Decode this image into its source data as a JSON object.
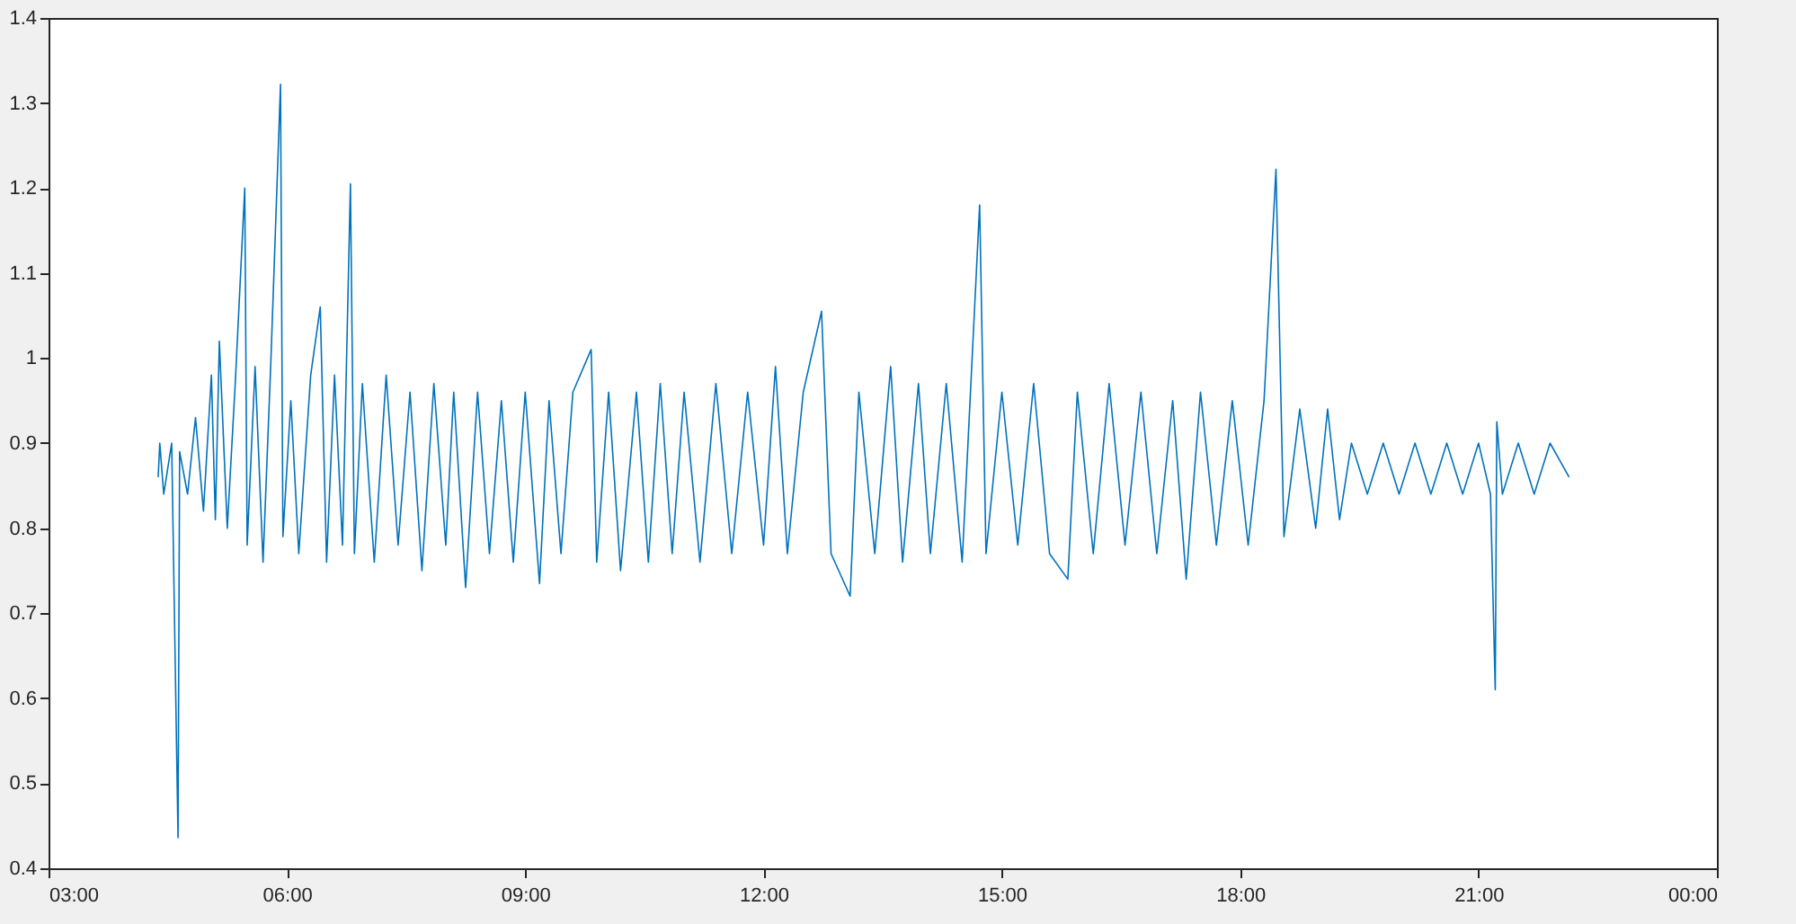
{
  "chart_data": {
    "type": "line",
    "color": "#0072bd",
    "line_style": "solid",
    "xlim": [
      3,
      24
    ],
    "ylim": [
      0.4,
      1.4
    ],
    "xticks": [
      {
        "value": 3,
        "label": "03:00"
      },
      {
        "value": 6,
        "label": "06:00"
      },
      {
        "value": 9,
        "label": "09:00"
      },
      {
        "value": 12,
        "label": "12:00"
      },
      {
        "value": 15,
        "label": "15:00"
      },
      {
        "value": 18,
        "label": "18:00"
      },
      {
        "value": 21,
        "label": "21:00"
      },
      {
        "value": 24,
        "label": "00:00"
      }
    ],
    "yticks": [
      0.4,
      0.5,
      0.6,
      0.7,
      0.8,
      0.9,
      1,
      1.1,
      1.2,
      1.3,
      1.4
    ],
    "x": [
      4.38,
      4.4,
      4.45,
      4.55,
      4.63,
      4.65,
      4.75,
      4.85,
      4.95,
      5.05,
      5.1,
      5.15,
      5.25,
      5.35,
      5.47,
      5.5,
      5.6,
      5.7,
      5.8,
      5.92,
      5.95,
      6.05,
      6.15,
      6.3,
      6.42,
      6.5,
      6.6,
      6.7,
      6.8,
      6.85,
      6.95,
      7.1,
      7.25,
      7.4,
      7.55,
      7.7,
      7.85,
      8.0,
      8.1,
      8.25,
      8.4,
      8.55,
      8.7,
      8.85,
      9.0,
      9.18,
      9.3,
      9.45,
      9.6,
      9.83,
      9.9,
      10.05,
      10.2,
      10.4,
      10.55,
      10.7,
      10.85,
      11.0,
      11.2,
      11.4,
      11.6,
      11.8,
      12.0,
      12.15,
      12.3,
      12.5,
      12.73,
      12.85,
      13.09,
      13.2,
      13.4,
      13.6,
      13.75,
      13.95,
      14.1,
      14.3,
      14.5,
      14.72,
      14.8,
      15.0,
      15.2,
      15.4,
      15.6,
      15.83,
      15.95,
      16.15,
      16.35,
      16.55,
      16.75,
      16.95,
      17.15,
      17.32,
      17.5,
      17.7,
      17.9,
      18.1,
      18.3,
      18.45,
      18.55,
      18.75,
      18.95,
      19.1,
      19.25,
      19.4,
      19.6,
      19.8,
      20.0,
      20.2,
      20.4,
      20.6,
      20.8,
      21.0,
      21.15,
      21.21,
      21.23,
      21.3,
      21.5,
      21.7,
      21.9,
      22.14
    ],
    "values": [
      0.86,
      0.9,
      0.84,
      0.9,
      0.436,
      0.89,
      0.84,
      0.93,
      0.82,
      0.98,
      0.81,
      1.02,
      0.8,
      0.97,
      1.2,
      0.78,
      0.99,
      0.76,
      1.0,
      1.322,
      0.79,
      0.95,
      0.77,
      0.98,
      1.06,
      0.76,
      0.98,
      0.78,
      1.205,
      0.77,
      0.97,
      0.76,
      0.98,
      0.78,
      0.96,
      0.75,
      0.97,
      0.78,
      0.96,
      0.73,
      0.96,
      0.77,
      0.95,
      0.76,
      0.96,
      0.735,
      0.95,
      0.77,
      0.96,
      1.01,
      0.76,
      0.96,
      0.75,
      0.96,
      0.76,
      0.97,
      0.77,
      0.96,
      0.76,
      0.97,
      0.77,
      0.96,
      0.78,
      0.99,
      0.77,
      0.96,
      1.055,
      0.77,
      0.72,
      0.96,
      0.77,
      0.99,
      0.76,
      0.97,
      0.77,
      0.97,
      0.76,
      1.18,
      0.77,
      0.96,
      0.78,
      0.97,
      0.77,
      0.74,
      0.96,
      0.77,
      0.97,
      0.78,
      0.96,
      0.77,
      0.95,
      0.74,
      0.96,
      0.78,
      0.95,
      0.78,
      0.95,
      1.222,
      0.79,
      0.94,
      0.8,
      0.94,
      0.81,
      0.9,
      0.84,
      0.9,
      0.84,
      0.9,
      0.84,
      0.9,
      0.84,
      0.9,
      0.84,
      0.61,
      0.925,
      0.84,
      0.9,
      0.84,
      0.9,
      0.86
    ]
  }
}
